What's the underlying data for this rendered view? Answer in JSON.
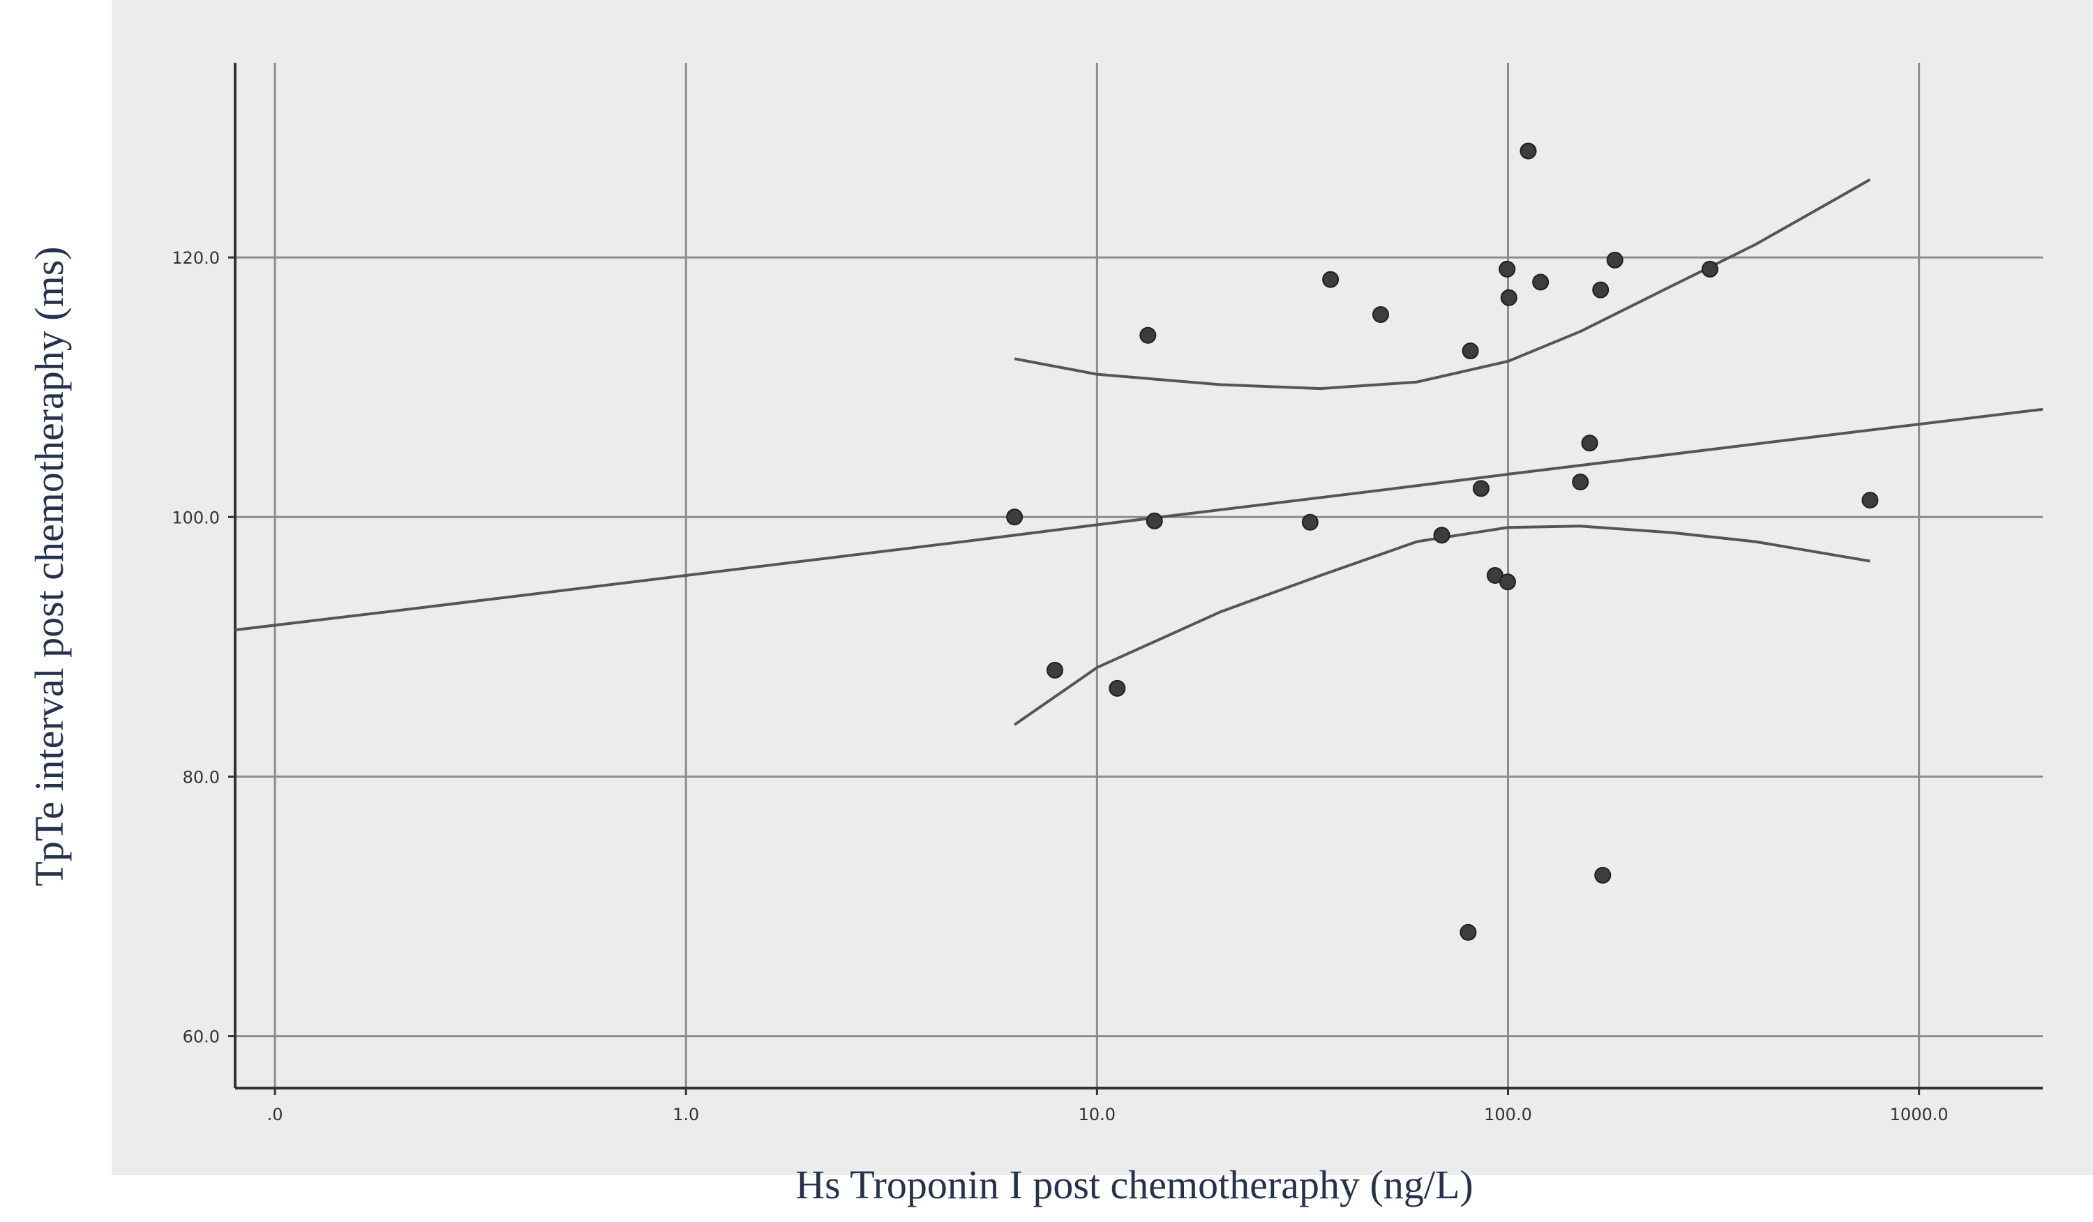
{
  "chart_data": {
    "type": "scatter",
    "title": "",
    "xlabel": "Hs Troponin I post chemotheraphy (ng/L)",
    "ylabel": "TpTe interval post chemotheraphy (ms)",
    "x_scale": "log",
    "grid": true,
    "xlim": [
      0.08,
      2000
    ],
    "ylim": [
      56,
      135
    ],
    "x_ticks": [
      0.1,
      1,
      10,
      100,
      1000
    ],
    "x_tick_labels": [
      ".0",
      "1.0",
      "10.0",
      "100.0",
      "1000.0"
    ],
    "y_ticks": [
      60,
      80,
      100,
      120
    ],
    "y_tick_labels": [
      "60.0",
      "80.0",
      "100.0",
      "120.0"
    ],
    "points": {
      "x": [
        6.3,
        7.9,
        11.2,
        13.3,
        13.8,
        33,
        37,
        49,
        69,
        80,
        81,
        86,
        93,
        99.5,
        99.8,
        100.5,
        112,
        120,
        150,
        158,
        168,
        170,
        182,
        310,
        760
      ],
      "y": [
        100.0,
        88.2,
        86.8,
        114.0,
        99.7,
        99.6,
        118.3,
        115.6,
        98.6,
        68.0,
        112.8,
        102.2,
        95.5,
        119.1,
        95.0,
        116.9,
        128.2,
        118.1,
        102.7,
        105.7,
        117.5,
        72.4,
        119.8,
        119.1,
        101.3
      ]
    },
    "fit_line": {
      "x": [
        0.08,
        0.2,
        1,
        5,
        10,
        50,
        100,
        500,
        2000
      ],
      "y": [
        91.3,
        92.8,
        95.5,
        98.2,
        99.4,
        102.1,
        103.3,
        106.0,
        108.3
      ]
    },
    "ci_upper": {
      "x": [
        6.3,
        10,
        20,
        35,
        60,
        100,
        150,
        250,
        400,
        760
      ],
      "y": [
        112.2,
        111.0,
        110.2,
        109.9,
        110.4,
        112.0,
        114.3,
        117.8,
        121.0,
        126.0
      ]
    },
    "ci_lower": {
      "x": [
        6.3,
        10,
        20,
        35,
        60,
        100,
        150,
        250,
        400,
        760
      ],
      "y": [
        84.0,
        88.4,
        92.7,
        95.5,
        98.1,
        99.2,
        99.3,
        98.8,
        98.1,
        96.6
      ]
    },
    "colors": {
      "plot_background": "#ececec",
      "gridline": "#8c8c8c",
      "axis": "#333333",
      "point": "#3d3d3d",
      "fit_line": "#555555",
      "axis_title": "#25324f"
    }
  }
}
